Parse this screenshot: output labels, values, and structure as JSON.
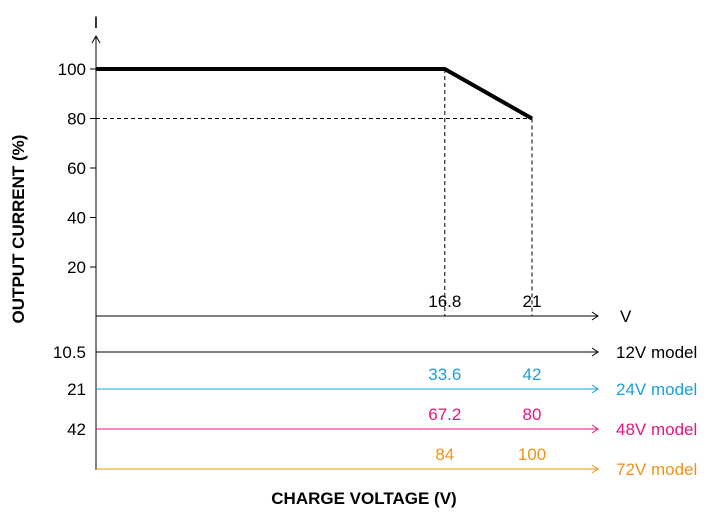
{
  "chart_data": {
    "type": "line",
    "y_axis_symbol": "I",
    "x_axis_symbol": "V",
    "ylabel": "OUTPUT CURRENT (%)",
    "xlabel": "CHARGE VOLTAGE (V)",
    "y_ticks": [
      "100",
      "80",
      "60",
      "40",
      "20"
    ],
    "ylim": [
      0,
      100
    ],
    "xlim": [
      0,
      21
    ],
    "series": [
      {
        "x": [
          0,
          16.8,
          21
        ],
        "y": [
          100,
          100,
          80
        ]
      }
    ],
    "reference_line": {
      "y": 80,
      "x_end": 21
    },
    "vertical_markers": [
      16.8,
      21
    ],
    "voltage_scales": [
      {
        "model": "",
        "start": "",
        "values": [
          "16.8",
          "21"
        ],
        "end_label": "V",
        "color": "#000000"
      },
      {
        "model": "12V model",
        "start": "10.5",
        "values": [
          "",
          ""
        ],
        "end_label": "12V model",
        "color": "#000000"
      },
      {
        "model": "24V model",
        "start": "21",
        "values": [
          "33.6",
          "42"
        ],
        "end_label": "24V model",
        "color": "#1a9fdc"
      },
      {
        "model": "48V model",
        "start": "42",
        "values": [
          "67.2",
          "80"
        ],
        "end_label": "48V model",
        "color": "#e3177f"
      },
      {
        "model": "72V model",
        "start": "",
        "values": [
          "84",
          "100"
        ],
        "end_label": "72V model",
        "color": "#f29217"
      }
    ]
  }
}
